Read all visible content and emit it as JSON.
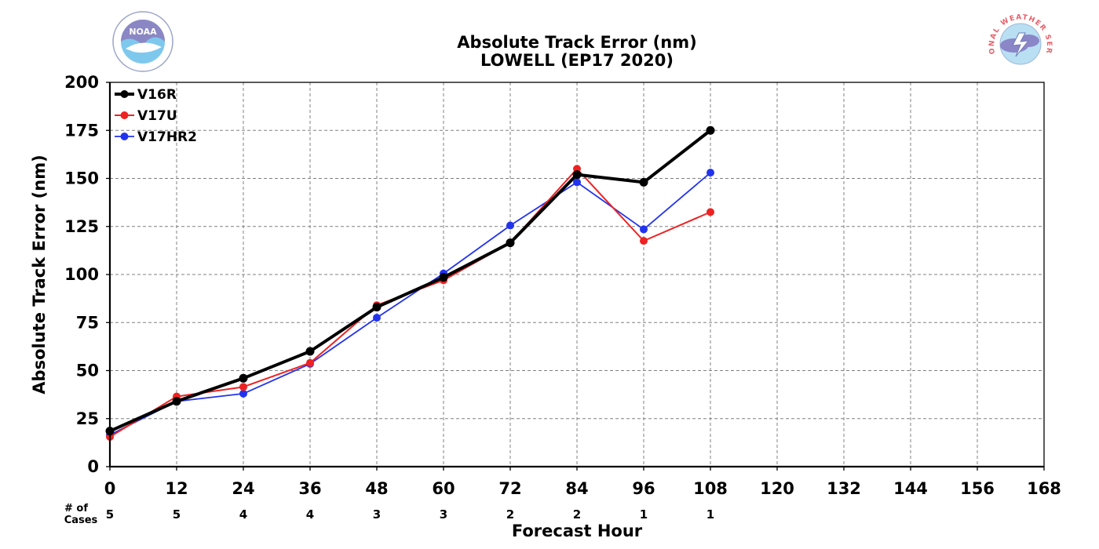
{
  "chart_data": {
    "type": "line",
    "title": "Absolute Track Error (nm)",
    "subtitle": "LOWELL (EP17 2020)",
    "xlabel": "Forecast Hour",
    "ylabel": "Absolute Track Error (nm)",
    "xlim": [
      0,
      168
    ],
    "ylim": [
      0,
      200
    ],
    "x_ticks": [
      0,
      12,
      24,
      36,
      48,
      60,
      72,
      84,
      96,
      108,
      120,
      132,
      144,
      156,
      168
    ],
    "y_ticks": [
      0,
      25,
      50,
      75,
      100,
      125,
      150,
      175,
      200
    ],
    "grid": true,
    "legend_position": "top-left",
    "cases_header": [
      "# of",
      "Cases"
    ],
    "cases": [
      {
        "x": 0,
        "n": "5"
      },
      {
        "x": 12,
        "n": "5"
      },
      {
        "x": 24,
        "n": "4"
      },
      {
        "x": 36,
        "n": "4"
      },
      {
        "x": 48,
        "n": "3"
      },
      {
        "x": 60,
        "n": "3"
      },
      {
        "x": 72,
        "n": "2"
      },
      {
        "x": 84,
        "n": "2"
      },
      {
        "x": 96,
        "n": "1"
      },
      {
        "x": 108,
        "n": "1"
      }
    ],
    "x": [
      0,
      12,
      24,
      36,
      48,
      60,
      72,
      84,
      96,
      108
    ],
    "series": [
      {
        "name": "V16R",
        "color": "#000000",
        "values": [
          18.5,
          34,
          46,
          60,
          83,
          98.5,
          116.5,
          152,
          148,
          175
        ]
      },
      {
        "name": "V17U",
        "color": "#ee2222",
        "values": [
          15.5,
          36.5,
          41.5,
          54,
          84,
          97,
          116.5,
          155,
          117.5,
          132.5
        ]
      },
      {
        "name": "V17HR2",
        "color": "#2233ee",
        "values": [
          16.5,
          34,
          38,
          53.5,
          77.5,
          100.5,
          125.5,
          148,
          123.5,
          153
        ]
      }
    ]
  },
  "logos": {
    "left": {
      "icon": "noaa-logo",
      "text": "NOAA"
    },
    "right": {
      "icon": "nws-logo",
      "text": "NATIONAL WEATHER SERVICE"
    }
  }
}
